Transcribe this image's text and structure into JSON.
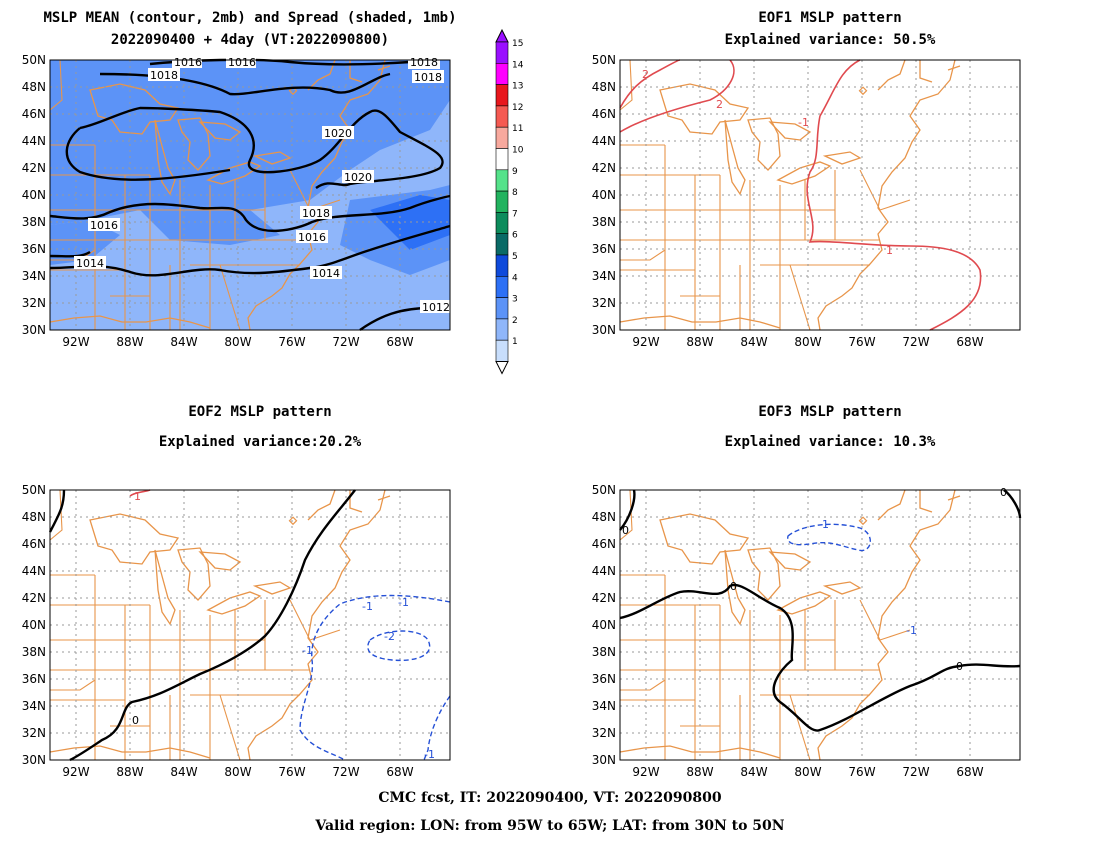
{
  "panels": {
    "mean": {
      "title1": "MSLP MEAN (contour, 2mb) and Spread (shaded, 1mb)",
      "title2": "2022090400 + 4day (VT:2022090800)"
    },
    "eof1": {
      "title1": "EOF1 MSLP pattern",
      "title2": "Explained variance: 50.5%"
    },
    "eof2": {
      "title1": "EOF2 MSLP pattern",
      "title2": "Explained variance:20.2%"
    },
    "eof3": {
      "title1": "EOF3 MSLP pattern",
      "title2": "Explained variance: 10.3%"
    }
  },
  "axes": {
    "lon_ticks": [
      "92W",
      "88W",
      "84W",
      "80W",
      "76W",
      "72W",
      "68W"
    ],
    "lat_ticks": [
      "50N",
      "48N",
      "46N",
      "44N",
      "42N",
      "40N",
      "38N",
      "36N",
      "34N",
      "32N",
      "30N"
    ]
  },
  "colorbar": {
    "levels": [
      "15",
      "14",
      "13",
      "12",
      "11",
      "10",
      "9",
      "8",
      "7",
      "6",
      "5",
      "4",
      "3",
      "2",
      "1"
    ],
    "colors": [
      "#9a10ff",
      "#ff00ff",
      "#e8171d",
      "#f55a52",
      "#f8a99e",
      "#ffffff",
      "#55e28a",
      "#22b35f",
      "#0d8c5c",
      "#0a6a66",
      "#0f4adb",
      "#2d70f5",
      "#5c93f7",
      "#8fb6fa",
      "#c8defc"
    ]
  },
  "mean_contour_labels": [
    "1016",
    "1016",
    "1018",
    "1018",
    "1018",
    "1020",
    "1020",
    "1018",
    "1016",
    "1016",
    "1014",
    "1014",
    "1012"
  ],
  "eof1_labels": [
    "2",
    "2",
    "-1",
    "1"
  ],
  "eof2_labels": [
    "1",
    "0",
    "-1",
    "-2",
    "-1",
    "-1",
    "-1"
  ],
  "eof3_labels": [
    "0",
    "0",
    "-1",
    "-1",
    "0",
    "0"
  ],
  "footer": {
    "line1": "CMC fcst, IT: 2022090400, VT: 2022090800",
    "line2": "Valid region: LON: from 95W to 65W; LAT: from 30N to 50N"
  }
}
